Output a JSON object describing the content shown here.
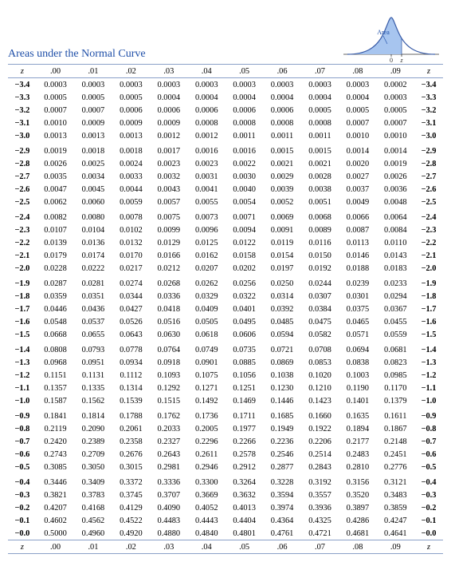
{
  "title": "Areas under the Normal Curve",
  "curve_label": "Area",
  "axis_labels": {
    "zero": "0",
    "z": "z"
  },
  "header": {
    "z": "z",
    "cols": [
      ".00",
      ".01",
      ".02",
      ".03",
      ".04",
      ".05",
      ".06",
      ".07",
      ".08",
      ".09"
    ]
  },
  "groups": [
    {
      "rows": [
        {
          "z": "-3.4",
          "v": [
            "0.0003",
            "0.0003",
            "0.0003",
            "0.0003",
            "0.0003",
            "0.0003",
            "0.0003",
            "0.0003",
            "0.0003",
            "0.0002"
          ]
        },
        {
          "z": "-3.3",
          "v": [
            "0.0005",
            "0.0005",
            "0.0005",
            "0.0004",
            "0.0004",
            "0.0004",
            "0.0004",
            "0.0004",
            "0.0004",
            "0.0003"
          ]
        },
        {
          "z": "-3.2",
          "v": [
            "0.0007",
            "0.0007",
            "0.0006",
            "0.0006",
            "0.0006",
            "0.0006",
            "0.0006",
            "0.0005",
            "0.0005",
            "0.0005"
          ]
        },
        {
          "z": "-3.1",
          "v": [
            "0.0010",
            "0.0009",
            "0.0009",
            "0.0009",
            "0.0008",
            "0.0008",
            "0.0008",
            "0.0008",
            "0.0007",
            "0.0007"
          ]
        },
        {
          "z": "-3.0",
          "v": [
            "0.0013",
            "0.0013",
            "0.0013",
            "0.0012",
            "0.0012",
            "0.0011",
            "0.0011",
            "0.0011",
            "0.0010",
            "0.0010"
          ]
        }
      ]
    },
    {
      "rows": [
        {
          "z": "-2.9",
          "v": [
            "0.0019",
            "0.0018",
            "0.0018",
            "0.0017",
            "0.0016",
            "0.0016",
            "0.0015",
            "0.0015",
            "0.0014",
            "0.0014"
          ]
        },
        {
          "z": "-2.8",
          "v": [
            "0.0026",
            "0.0025",
            "0.0024",
            "0.0023",
            "0.0023",
            "0.0022",
            "0.0021",
            "0.0021",
            "0.0020",
            "0.0019"
          ]
        },
        {
          "z": "-2.7",
          "v": [
            "0.0035",
            "0.0034",
            "0.0033",
            "0.0032",
            "0.0031",
            "0.0030",
            "0.0029",
            "0.0028",
            "0.0027",
            "0.0026"
          ]
        },
        {
          "z": "-2.6",
          "v": [
            "0.0047",
            "0.0045",
            "0.0044",
            "0.0043",
            "0.0041",
            "0.0040",
            "0.0039",
            "0.0038",
            "0.0037",
            "0.0036"
          ]
        },
        {
          "z": "-2.5",
          "v": [
            "0.0062",
            "0.0060",
            "0.0059",
            "0.0057",
            "0.0055",
            "0.0054",
            "0.0052",
            "0.0051",
            "0.0049",
            "0.0048"
          ]
        }
      ]
    },
    {
      "rows": [
        {
          "z": "-2.4",
          "v": [
            "0.0082",
            "0.0080",
            "0.0078",
            "0.0075",
            "0.0073",
            "0.0071",
            "0.0069",
            "0.0068",
            "0.0066",
            "0.0064"
          ]
        },
        {
          "z": "-2.3",
          "v": [
            "0.0107",
            "0.0104",
            "0.0102",
            "0.0099",
            "0.0096",
            "0.0094",
            "0.0091",
            "0.0089",
            "0.0087",
            "0.0084"
          ]
        },
        {
          "z": "-2.2",
          "v": [
            "0.0139",
            "0.0136",
            "0.0132",
            "0.0129",
            "0.0125",
            "0.0122",
            "0.0119",
            "0.0116",
            "0.0113",
            "0.0110"
          ]
        },
        {
          "z": "-2.1",
          "v": [
            "0.0179",
            "0.0174",
            "0.0170",
            "0.0166",
            "0.0162",
            "0.0158",
            "0.0154",
            "0.0150",
            "0.0146",
            "0.0143"
          ]
        },
        {
          "z": "-2.0",
          "v": [
            "0.0228",
            "0.0222",
            "0.0217",
            "0.0212",
            "0.0207",
            "0.0202",
            "0.0197",
            "0.0192",
            "0.0188",
            "0.0183"
          ]
        }
      ]
    },
    {
      "rows": [
        {
          "z": "-1.9",
          "v": [
            "0.0287",
            "0.0281",
            "0.0274",
            "0.0268",
            "0.0262",
            "0.0256",
            "0.0250",
            "0.0244",
            "0.0239",
            "0.0233"
          ]
        },
        {
          "z": "-1.8",
          "v": [
            "0.0359",
            "0.0351",
            "0.0344",
            "0.0336",
            "0.0329",
            "0.0322",
            "0.0314",
            "0.0307",
            "0.0301",
            "0.0294"
          ]
        },
        {
          "z": "-1.7",
          "v": [
            "0.0446",
            "0.0436",
            "0.0427",
            "0.0418",
            "0.0409",
            "0.0401",
            "0.0392",
            "0.0384",
            "0.0375",
            "0.0367"
          ]
        },
        {
          "z": "-1.6",
          "v": [
            "0.0548",
            "0.0537",
            "0.0526",
            "0.0516",
            "0.0505",
            "0.0495",
            "0.0485",
            "0.0475",
            "0.0465",
            "0.0455"
          ]
        },
        {
          "z": "-1.5",
          "v": [
            "0.0668",
            "0.0655",
            "0.0643",
            "0.0630",
            "0.0618",
            "0.0606",
            "0.0594",
            "0.0582",
            "0.0571",
            "0.0559"
          ]
        }
      ]
    },
    {
      "rows": [
        {
          "z": "-1.4",
          "v": [
            "0.0808",
            "0.0793",
            "0.0778",
            "0.0764",
            "0.0749",
            "0.0735",
            "0.0721",
            "0.0708",
            "0.0694",
            "0.0681"
          ]
        },
        {
          "z": "-1.3",
          "v": [
            "0.0968",
            "0.0951",
            "0.0934",
            "0.0918",
            "0.0901",
            "0.0885",
            "0.0869",
            "0.0853",
            "0.0838",
            "0.0823"
          ]
        },
        {
          "z": "-1.2",
          "v": [
            "0.1151",
            "0.1131",
            "0.1112",
            "0.1093",
            "0.1075",
            "0.1056",
            "0.1038",
            "0.1020",
            "0.1003",
            "0.0985"
          ]
        },
        {
          "z": "-1.1",
          "v": [
            "0.1357",
            "0.1335",
            "0.1314",
            "0.1292",
            "0.1271",
            "0.1251",
            "0.1230",
            "0.1210",
            "0.1190",
            "0.1170"
          ]
        },
        {
          "z": "-1.0",
          "v": [
            "0.1587",
            "0.1562",
            "0.1539",
            "0.1515",
            "0.1492",
            "0.1469",
            "0.1446",
            "0.1423",
            "0.1401",
            "0.1379"
          ]
        }
      ]
    },
    {
      "rows": [
        {
          "z": "-0.9",
          "v": [
            "0.1841",
            "0.1814",
            "0.1788",
            "0.1762",
            "0.1736",
            "0.1711",
            "0.1685",
            "0.1660",
            "0.1635",
            "0.1611"
          ]
        },
        {
          "z": "-0.8",
          "v": [
            "0.2119",
            "0.2090",
            "0.2061",
            "0.2033",
            "0.2005",
            "0.1977",
            "0.1949",
            "0.1922",
            "0.1894",
            "0.1867"
          ]
        },
        {
          "z": "-0.7",
          "v": [
            "0.2420",
            "0.2389",
            "0.2358",
            "0.2327",
            "0.2296",
            "0.2266",
            "0.2236",
            "0.2206",
            "0.2177",
            "0.2148"
          ]
        },
        {
          "z": "-0.6",
          "v": [
            "0.2743",
            "0.2709",
            "0.2676",
            "0.2643",
            "0.2611",
            "0.2578",
            "0.2546",
            "0.2514",
            "0.2483",
            "0.2451"
          ]
        },
        {
          "z": "-0.5",
          "v": [
            "0.3085",
            "0.3050",
            "0.3015",
            "0.2981",
            "0.2946",
            "0.2912",
            "0.2877",
            "0.2843",
            "0.2810",
            "0.2776"
          ]
        }
      ]
    },
    {
      "rows": [
        {
          "z": "-0.4",
          "v": [
            "0.3446",
            "0.3409",
            "0.3372",
            "0.3336",
            "0.3300",
            "0.3264",
            "0.3228",
            "0.3192",
            "0.3156",
            "0.3121"
          ]
        },
        {
          "z": "-0.3",
          "v": [
            "0.3821",
            "0.3783",
            "0.3745",
            "0.3707",
            "0.3669",
            "0.3632",
            "0.3594",
            "0.3557",
            "0.3520",
            "0.3483"
          ]
        },
        {
          "z": "-0.2",
          "v": [
            "0.4207",
            "0.4168",
            "0.4129",
            "0.4090",
            "0.4052",
            "0.4013",
            "0.3974",
            "0.3936",
            "0.3897",
            "0.3859"
          ]
        },
        {
          "z": "-0.1",
          "v": [
            "0.4602",
            "0.4562",
            "0.4522",
            "0.4483",
            "0.4443",
            "0.4404",
            "0.4364",
            "0.4325",
            "0.4286",
            "0.4247"
          ]
        },
        {
          "z": "-0.0",
          "v": [
            "0.5000",
            "0.4960",
            "0.4920",
            "0.4880",
            "0.4840",
            "0.4801",
            "0.4761",
            "0.4721",
            "0.4681",
            "0.4641"
          ]
        }
      ]
    }
  ],
  "style": {
    "title_color": "#1f4fa8",
    "rule_color": "#8aa0c8",
    "curve_fill": "#a7c5ef",
    "curve_stroke": "#3a5da8",
    "font_family": "Times New Roman",
    "font_size_body": 10.4,
    "font_size_title": 14
  }
}
